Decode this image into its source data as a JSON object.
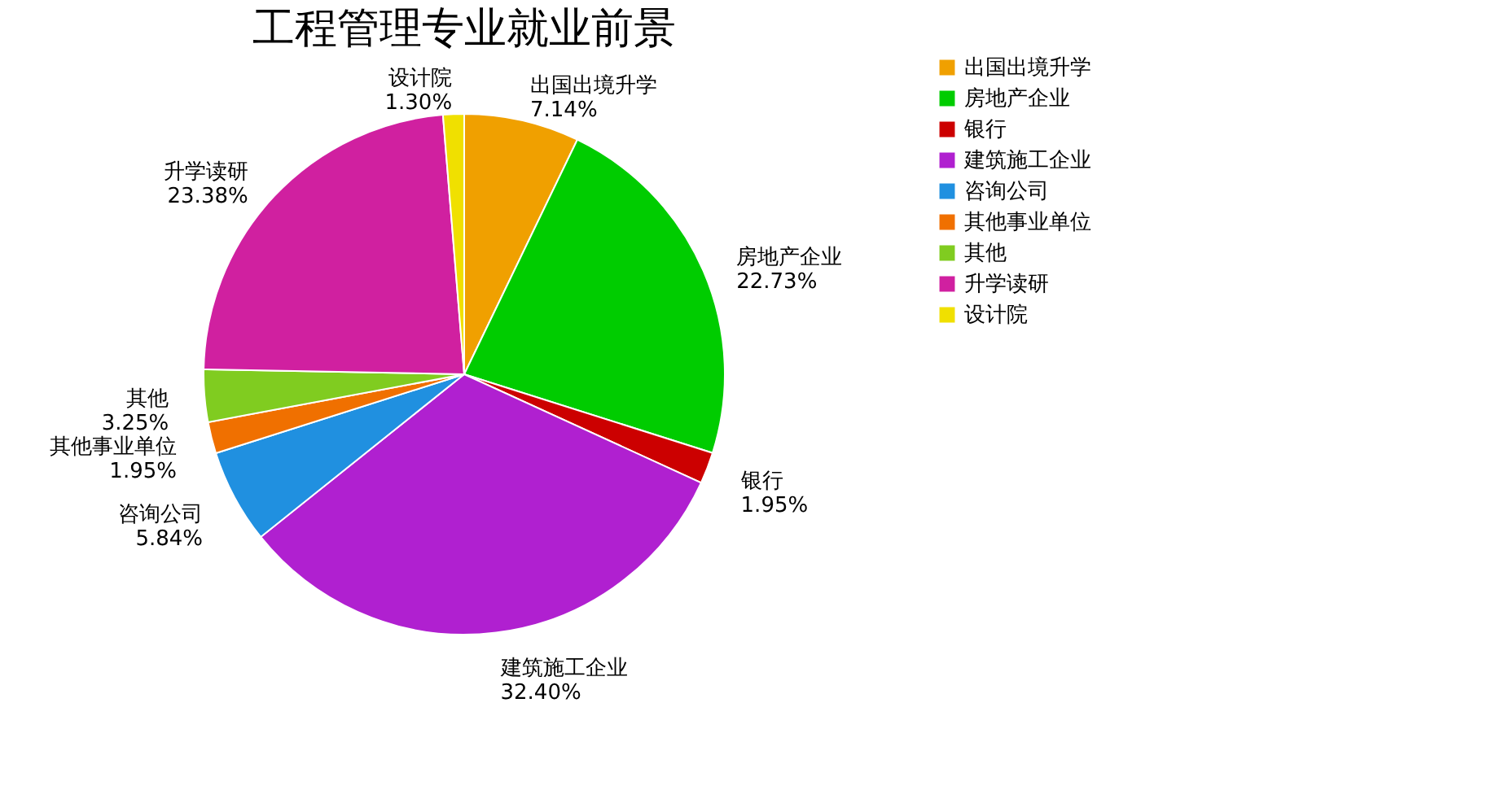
{
  "chart_data": {
    "type": "pie",
    "title": "工程管理专业就业前景",
    "categories": [
      "出国出境升学",
      "房地产企业",
      "银行",
      "建筑施工企业",
      "咨询公司",
      "其他事业单位",
      "其他",
      "升学读研",
      "设计院"
    ],
    "values": [
      7.14,
      22.73,
      1.95,
      32.4,
      5.84,
      1.95,
      3.25,
      23.38,
      1.3
    ],
    "value_labels": [
      "7.14%",
      "22.73%",
      "1.95%",
      "32.40%",
      "5.84%",
      "1.95%",
      "3.25%",
      "23.38%",
      "1.30%"
    ],
    "colors": [
      "#f0a000",
      "#00cc00",
      "#cc0000",
      "#b020d0",
      "#2090e0",
      "#f07000",
      "#80cc20",
      "#d020a0",
      "#f0e000"
    ],
    "legend": "right"
  }
}
